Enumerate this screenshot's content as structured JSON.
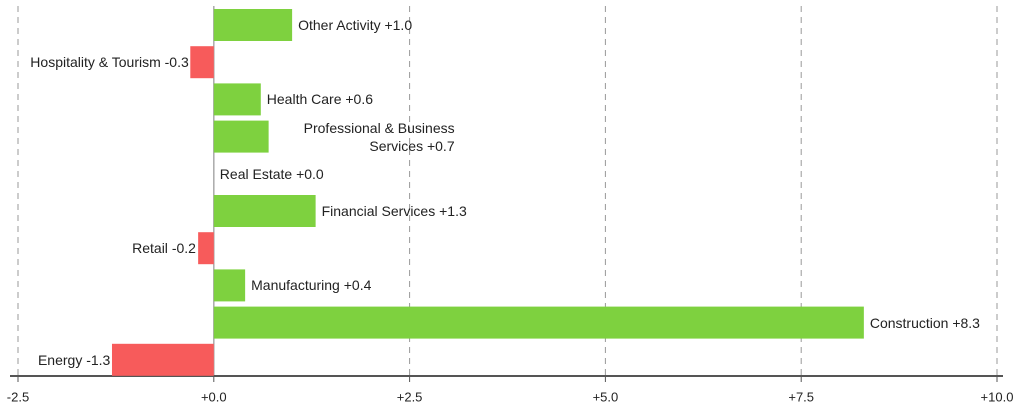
{
  "chart_data": {
    "type": "hbar",
    "categories": [
      "Other Activity",
      "Hospitality & Tourism",
      "Health Care",
      "Professional & Business Services",
      "Real Estate",
      "Financial Services",
      "Retail",
      "Manufacturing",
      "Construction",
      "Energy"
    ],
    "values": [
      1.0,
      -0.3,
      0.6,
      0.7,
      0.0,
      1.3,
      -0.2,
      0.4,
      8.3,
      -1.3
    ],
    "value_labels": [
      "+1.0",
      "-0.3",
      "+0.6",
      "+0.7",
      "+0.0",
      "+1.3",
      "-0.2",
      "+0.4",
      "+8.3",
      "-1.3"
    ],
    "positive_color": "#7ed13f",
    "negative_color": "#f75b5b",
    "xlim": [
      -2.5,
      10
    ],
    "xticks": [
      -2.5,
      {
        "value": 0,
        "label": "+0.0"
      },
      {
        "value": 2.5,
        "label": "+2.5"
      },
      {
        "value": 5,
        "label": "+5.0"
      },
      {
        "value": 7.5,
        "label": "+7.5"
      },
      {
        "value": 10,
        "label": "+10.0"
      }
    ],
    "grid": true
  }
}
